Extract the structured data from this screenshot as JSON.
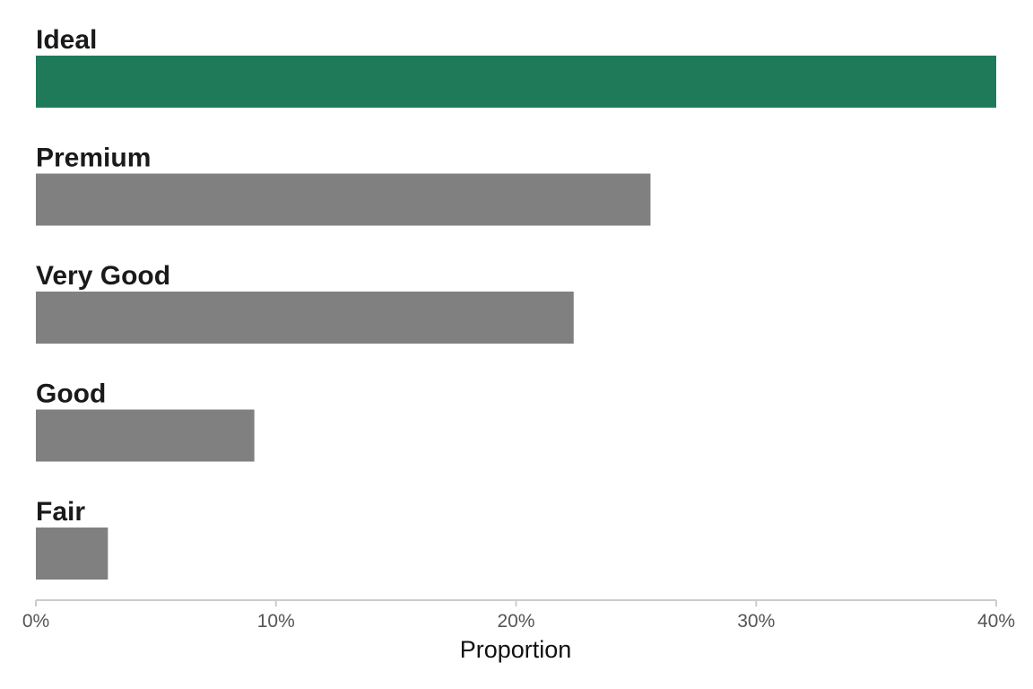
{
  "chart_data": {
    "type": "bar",
    "orientation": "horizontal",
    "categories": [
      "Ideal",
      "Premium",
      "Very Good",
      "Good",
      "Fair"
    ],
    "values": [
      0.4,
      0.256,
      0.224,
      0.091,
      0.03
    ],
    "xlabel": "Proportion",
    "ylabel": "",
    "xlim": [
      0,
      0.4
    ],
    "ticks": [
      {
        "value": 0,
        "label": "0%"
      },
      {
        "value": 0.1,
        "label": "10%"
      },
      {
        "value": 0.2,
        "label": "20%"
      },
      {
        "value": 0.3,
        "label": "30%"
      },
      {
        "value": 0.4,
        "label": "40%"
      }
    ],
    "grid": false,
    "colors": {
      "highlight": "#1f7a5a",
      "default": "#808080",
      "axis": "#cccccc"
    },
    "highlight_category": "Ideal"
  }
}
